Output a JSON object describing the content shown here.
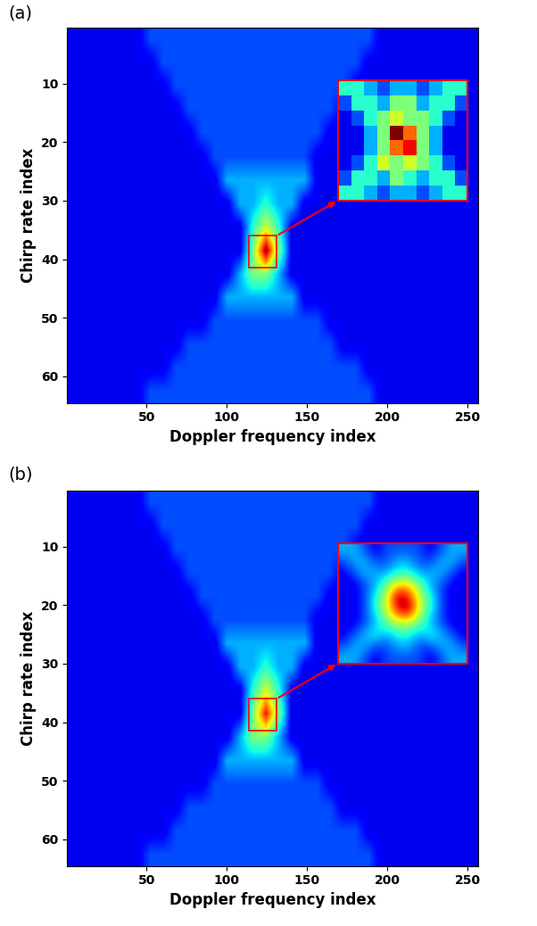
{
  "chart_data": [
    {
      "type": "heatmap",
      "title": "(a)",
      "x_label": "Doppler frequency index",
      "y_label": "Chirp rate index",
      "xlim": [
        0.5,
        256.5
      ],
      "ylim": [
        64.5,
        0.5
      ],
      "xticks": [
        50,
        100,
        150,
        200,
        250
      ],
      "yticks": [
        10,
        20,
        30,
        40,
        50,
        60
      ],
      "clim": [
        0,
        10
      ],
      "cells": [
        [
          1,
          1,
          1,
          1,
          1,
          1,
          2,
          2,
          2,
          2,
          2,
          2,
          2,
          2,
          2,
          2,
          2,
          2,
          2,
          2,
          2,
          2,
          2,
          2,
          1,
          1,
          1,
          1,
          1,
          1,
          1,
          1
        ],
        [
          1,
          1,
          1,
          1,
          1,
          1,
          1,
          2,
          2,
          2,
          2,
          2,
          2,
          2,
          2,
          2,
          2,
          2,
          2,
          2,
          2,
          2,
          2,
          1,
          1,
          1,
          1,
          1,
          1,
          1,
          1,
          1
        ],
        [
          1,
          1,
          1,
          1,
          1,
          1,
          1,
          1,
          2,
          2,
          2,
          2,
          2,
          2,
          2,
          2,
          2,
          2,
          2,
          2,
          2,
          2,
          1,
          1,
          1,
          1,
          1,
          1,
          1,
          1,
          1,
          1
        ],
        [
          1,
          1,
          1,
          1,
          1,
          1,
          1,
          1,
          1,
          2,
          2,
          2,
          2,
          2,
          2,
          2,
          2,
          2,
          2,
          2,
          2,
          1,
          1,
          1,
          1,
          1,
          1,
          1,
          1,
          1,
          1,
          1
        ],
        [
          1,
          1,
          1,
          1,
          1,
          1,
          1,
          1,
          1,
          1,
          2,
          2,
          2,
          2,
          2,
          2,
          2,
          2,
          2,
          2,
          1,
          1,
          1,
          1,
          1,
          1,
          1,
          1,
          1,
          1,
          1,
          1
        ],
        [
          1,
          1,
          1,
          1,
          1,
          1,
          1,
          1,
          1,
          1,
          1,
          2,
          2,
          2,
          2,
          2,
          2,
          2,
          2,
          1,
          1,
          1,
          1,
          1,
          1,
          1,
          1,
          1,
          1,
          1,
          1,
          1
        ],
        [
          1,
          1,
          1,
          1,
          1,
          1,
          1,
          1,
          1,
          1,
          1,
          1,
          3,
          3,
          3,
          3,
          3,
          3,
          3,
          1,
          1,
          1,
          1,
          1,
          1,
          1,
          1,
          1,
          1,
          1,
          1,
          1
        ],
        [
          1,
          1,
          1,
          1,
          1,
          1,
          1,
          1,
          1,
          1,
          1,
          1,
          1,
          3,
          3,
          4,
          3,
          3,
          1,
          1,
          1,
          1,
          1,
          1,
          1,
          1,
          1,
          1,
          1,
          1,
          1,
          1
        ],
        [
          1,
          1,
          1,
          1,
          1,
          1,
          1,
          1,
          1,
          1,
          1,
          1,
          1,
          1,
          4,
          6,
          4,
          1,
          1,
          1,
          1,
          1,
          1,
          1,
          1,
          1,
          1,
          1,
          1,
          1,
          1,
          1
        ],
        [
          1,
          1,
          1,
          1,
          1,
          1,
          1,
          1,
          1,
          1,
          1,
          1,
          1,
          1,
          5,
          10,
          5,
          1,
          1,
          1,
          1,
          1,
          1,
          1,
          1,
          1,
          1,
          1,
          1,
          1,
          1,
          1
        ],
        [
          1,
          1,
          1,
          1,
          1,
          1,
          1,
          1,
          1,
          1,
          1,
          1,
          1,
          3,
          5,
          5,
          3,
          1,
          1,
          1,
          1,
          1,
          1,
          1,
          1,
          1,
          1,
          1,
          1,
          1,
          1,
          1
        ],
        [
          1,
          1,
          1,
          1,
          1,
          1,
          1,
          1,
          1,
          1,
          1,
          1,
          3,
          3,
          3,
          3,
          3,
          3,
          1,
          1,
          1,
          1,
          1,
          1,
          1,
          1,
          1,
          1,
          1,
          1,
          1,
          1
        ],
        [
          1,
          1,
          1,
          1,
          1,
          1,
          1,
          1,
          1,
          1,
          1,
          2,
          2,
          2,
          2,
          2,
          2,
          2,
          2,
          2,
          1,
          1,
          1,
          1,
          1,
          1,
          1,
          1,
          1,
          1,
          1,
          1
        ],
        [
          1,
          1,
          1,
          1,
          1,
          1,
          1,
          1,
          1,
          2,
          2,
          2,
          2,
          2,
          2,
          2,
          2,
          2,
          2,
          2,
          2,
          1,
          1,
          1,
          1,
          1,
          1,
          1,
          1,
          1,
          1,
          1
        ],
        [
          1,
          1,
          1,
          1,
          1,
          1,
          1,
          1,
          2,
          2,
          2,
          2,
          2,
          2,
          2,
          2,
          2,
          2,
          2,
          2,
          2,
          2,
          2,
          1,
          1,
          1,
          1,
          1,
          1,
          1,
          1,
          1
        ],
        [
          1,
          1,
          1,
          1,
          1,
          1,
          2,
          2,
          2,
          2,
          2,
          2,
          2,
          2,
          2,
          2,
          2,
          2,
          2,
          2,
          2,
          2,
          2,
          2,
          1,
          1,
          1,
          1,
          1,
          1,
          1,
          1
        ]
      ],
      "inset": {
        "x_range": [
          114,
          131
        ],
        "y_range": [
          36,
          41.5
        ],
        "cells": [
          [
            4,
            4,
            3,
            2,
            3,
            3,
            2,
            3,
            4,
            4
          ],
          [
            2,
            4,
            4,
            3,
            5,
            5,
            3,
            4,
            4,
            2
          ],
          [
            1,
            2,
            4,
            5,
            6,
            5,
            5,
            4,
            2,
            1
          ],
          [
            1,
            1,
            3,
            5,
            10,
            8,
            5,
            3,
            1,
            1
          ],
          [
            1,
            1,
            3,
            5,
            8,
            9,
            5,
            3,
            1,
            1
          ],
          [
            1,
            2,
            4,
            6,
            5,
            6,
            5,
            4,
            2,
            1
          ],
          [
            2,
            4,
            4,
            3,
            5,
            4,
            3,
            4,
            4,
            2
          ],
          [
            4,
            4,
            3,
            2,
            3,
            3,
            2,
            3,
            4,
            4
          ]
        ]
      }
    },
    {
      "type": "heatmap",
      "title": "(b)",
      "x_label": "Doppler frequency index",
      "y_label": "Chirp rate index",
      "xlim": [
        0.5,
        256.5
      ],
      "ylim": [
        64.5,
        0.5
      ],
      "xticks": [
        50,
        100,
        150,
        200,
        250
      ],
      "yticks": [
        10,
        20,
        30,
        40,
        50,
        60
      ],
      "clim": [
        0,
        10
      ],
      "cells": [
        [
          1,
          1,
          1,
          1,
          1,
          1,
          2,
          2,
          2,
          2,
          2,
          2,
          2,
          2,
          2,
          2,
          2,
          2,
          2,
          2,
          2,
          2,
          2,
          2,
          1,
          1,
          1,
          1,
          1,
          1,
          1,
          1
        ],
        [
          1,
          1,
          1,
          1,
          1,
          1,
          1,
          2,
          2,
          2,
          2,
          2,
          2,
          2,
          2,
          2,
          2,
          2,
          2,
          2,
          2,
          2,
          2,
          1,
          1,
          1,
          1,
          1,
          1,
          1,
          1,
          1
        ],
        [
          1,
          1,
          1,
          1,
          1,
          1,
          1,
          1,
          2,
          2,
          2,
          2,
          2,
          2,
          2,
          2,
          2,
          2,
          2,
          2,
          2,
          2,
          1,
          1,
          1,
          1,
          1,
          1,
          1,
          1,
          1,
          1
        ],
        [
          1,
          1,
          1,
          1,
          1,
          1,
          1,
          1,
          1,
          2,
          2,
          2,
          2,
          2,
          2,
          2,
          2,
          2,
          2,
          2,
          2,
          1,
          1,
          1,
          1,
          1,
          1,
          1,
          1,
          1,
          1,
          1
        ],
        [
          1,
          1,
          1,
          1,
          1,
          1,
          1,
          1,
          1,
          1,
          2,
          2,
          2,
          2,
          2,
          2,
          2,
          2,
          2,
          2,
          1,
          1,
          1,
          1,
          1,
          1,
          1,
          1,
          1,
          1,
          1,
          1
        ],
        [
          1,
          1,
          1,
          1,
          1,
          1,
          1,
          1,
          1,
          1,
          1,
          2,
          2,
          2,
          2,
          2,
          2,
          2,
          2,
          1,
          1,
          1,
          1,
          1,
          1,
          1,
          1,
          1,
          1,
          1,
          1,
          1
        ],
        [
          1,
          1,
          1,
          1,
          1,
          1,
          1,
          1,
          1,
          1,
          1,
          1,
          3,
          3,
          3,
          3,
          3,
          3,
          3,
          1,
          1,
          1,
          1,
          1,
          1,
          1,
          1,
          1,
          1,
          1,
          1,
          1
        ],
        [
          1,
          1,
          1,
          1,
          1,
          1,
          1,
          1,
          1,
          1,
          1,
          1,
          1,
          3,
          3,
          4,
          3,
          3,
          1,
          1,
          1,
          1,
          1,
          1,
          1,
          1,
          1,
          1,
          1,
          1,
          1,
          1
        ],
        [
          1,
          1,
          1,
          1,
          1,
          1,
          1,
          1,
          1,
          1,
          1,
          1,
          1,
          1,
          4,
          6,
          4,
          1,
          1,
          1,
          1,
          1,
          1,
          1,
          1,
          1,
          1,
          1,
          1,
          1,
          1,
          1
        ],
        [
          1,
          1,
          1,
          1,
          1,
          1,
          1,
          1,
          1,
          1,
          1,
          1,
          1,
          1,
          5,
          9,
          5,
          1,
          1,
          1,
          1,
          1,
          1,
          1,
          1,
          1,
          1,
          1,
          1,
          1,
          1,
          1
        ],
        [
          1,
          1,
          1,
          1,
          1,
          1,
          1,
          1,
          1,
          1,
          1,
          1,
          1,
          3,
          5,
          5,
          3,
          1,
          1,
          1,
          1,
          1,
          1,
          1,
          1,
          1,
          1,
          1,
          1,
          1,
          1,
          1
        ],
        [
          1,
          1,
          1,
          1,
          1,
          1,
          1,
          1,
          1,
          1,
          1,
          1,
          3,
          3,
          3,
          3,
          3,
          3,
          1,
          1,
          1,
          1,
          1,
          1,
          1,
          1,
          1,
          1,
          1,
          1,
          1,
          1
        ],
        [
          1,
          1,
          1,
          1,
          1,
          1,
          1,
          1,
          1,
          1,
          1,
          2,
          2,
          2,
          2,
          2,
          2,
          2,
          2,
          2,
          1,
          1,
          1,
          1,
          1,
          1,
          1,
          1,
          1,
          1,
          1,
          1
        ],
        [
          1,
          1,
          1,
          1,
          1,
          1,
          1,
          1,
          1,
          2,
          2,
          2,
          2,
          2,
          2,
          2,
          2,
          2,
          2,
          2,
          2,
          1,
          1,
          1,
          1,
          1,
          1,
          1,
          1,
          1,
          1,
          1
        ],
        [
          1,
          1,
          1,
          1,
          1,
          1,
          1,
          1,
          2,
          2,
          2,
          2,
          2,
          2,
          2,
          2,
          2,
          2,
          2,
          2,
          2,
          2,
          2,
          1,
          1,
          1,
          1,
          1,
          1,
          1,
          1,
          1
        ],
        [
          1,
          1,
          1,
          1,
          1,
          1,
          2,
          2,
          2,
          2,
          2,
          2,
          2,
          2,
          2,
          2,
          2,
          2,
          2,
          2,
          2,
          2,
          2,
          2,
          1,
          1,
          1,
          1,
          1,
          1,
          1,
          1
        ]
      ],
      "inset": {
        "x_range": [
          114,
          131
        ],
        "y_range": [
          36,
          41.5
        ],
        "cells": [
          [
            3,
            3,
            2,
            1,
            2,
            2,
            2,
            2,
            1,
            2,
            3,
            3
          ],
          [
            2,
            3,
            3,
            2,
            2,
            3,
            3,
            2,
            2,
            3,
            3,
            2
          ],
          [
            1,
            2,
            3,
            3,
            3,
            4,
            4,
            3,
            3,
            3,
            2,
            1
          ],
          [
            1,
            1,
            2,
            3,
            5,
            7,
            7,
            5,
            3,
            2,
            1,
            1
          ],
          [
            1,
            1,
            2,
            4,
            6,
            10,
            9,
            6,
            4,
            2,
            1,
            1
          ],
          [
            1,
            1,
            2,
            4,
            6,
            9,
            10,
            6,
            4,
            2,
            1,
            1
          ],
          [
            1,
            1,
            2,
            3,
            5,
            6,
            6,
            5,
            3,
            2,
            1,
            1
          ],
          [
            1,
            2,
            3,
            4,
            3,
            4,
            4,
            3,
            4,
            3,
            2,
            1
          ],
          [
            2,
            3,
            3,
            2,
            2,
            3,
            3,
            2,
            2,
            3,
            3,
            2
          ],
          [
            3,
            3,
            2,
            1,
            2,
            2,
            2,
            2,
            1,
            2,
            3,
            3
          ]
        ]
      }
    }
  ]
}
